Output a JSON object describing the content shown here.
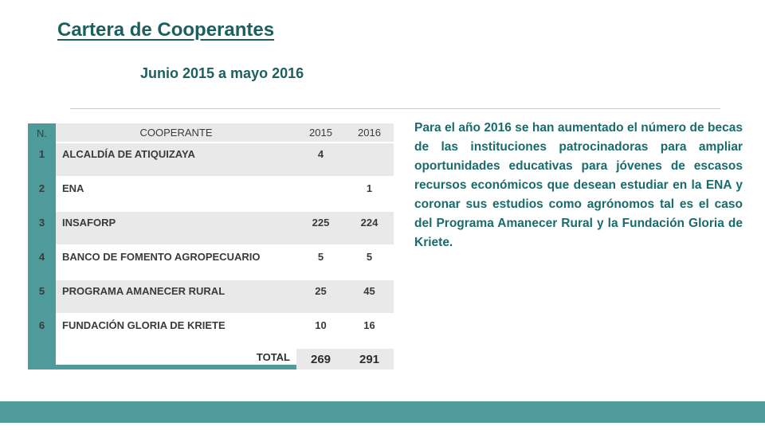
{
  "slide": {
    "title": "Cartera de Cooperantes",
    "subtitle": "Junio 2015 a mayo 2016",
    "paragraph": "Para el año 2016 se han aumentado el número de becas de las instituciones patrocinadoras para ampliar oportunidades educativas para jóvenes de escasos recursos económicos que desean estudiar en la ENA y coronar sus estudios como agrónomos tal es el caso del Programa Amanecer Rural y la Fundación Gloria de Kriete."
  },
  "table": {
    "headers": {
      "n": "N.",
      "cooperante": "COOPERANTE",
      "y2015": "2015",
      "y2016": "2016"
    },
    "rows": [
      {
        "n": "1",
        "cooperante": "ALCALDÍA DE ATIQUIZAYA",
        "y2015": "4",
        "y2016": ""
      },
      {
        "n": "2",
        "cooperante": "ENA",
        "y2015": "",
        "y2016": "1"
      },
      {
        "n": "3",
        "cooperante": "INSAFORP",
        "y2015": "225",
        "y2016": "224"
      },
      {
        "n": "4",
        "cooperante": "BANCO DE FOMENTO AGROPECUARIO",
        "y2015": "5",
        "y2016": "5"
      },
      {
        "n": "5",
        "cooperante": "PROGRAMA AMANECER RURAL",
        "y2015": "25",
        "y2016": "45"
      },
      {
        "n": "6",
        "cooperante": "FUNDACIÓN GLORIA DE KRIETE",
        "y2015": "10",
        "y2016": "16"
      }
    ],
    "total": {
      "label": "TOTAL",
      "y2015": "269",
      "y2016": "291"
    }
  },
  "colors": {
    "accent_teal": "#4f9b9c",
    "heading_text": "#1d5f5f",
    "paragraph_text": "#1a6b6b",
    "row_shade": "#e9e9e9",
    "table_text": "#3a3a3a"
  }
}
